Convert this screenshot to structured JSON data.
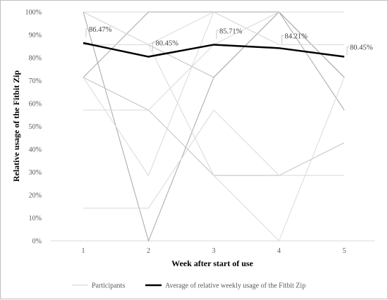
{
  "chart_data": {
    "type": "line",
    "title": "",
    "xlabel": "Week after start of use",
    "ylabel": "Relative usage of the Fitbit Zip",
    "x": [
      1,
      2,
      3,
      4,
      5
    ],
    "x_tick_labels": [
      "1",
      "2",
      "3",
      "4",
      "5"
    ],
    "ylim": [
      0,
      100
    ],
    "y_tick_labels": [
      "0%",
      "10%",
      "20%",
      "30%",
      "40%",
      "50%",
      "60%",
      "70%",
      "80%",
      "90%",
      "100%"
    ],
    "grid": false,
    "legend_position": "bottom",
    "participant_series": [
      {
        "values": [
          100,
          100,
          100,
          100,
          100
        ],
        "color": "#d9d9d9"
      },
      {
        "values": [
          100,
          85.71,
          71.43,
          100,
          71.43
        ],
        "color": "#bfbfbf"
      },
      {
        "values": [
          100,
          0,
          71.43,
          100,
          71.43
        ],
        "color": "#a6a6a6"
      },
      {
        "values": [
          71.43,
          100,
          100,
          100,
          57.14
        ],
        "color": "#a6a6a6"
      },
      {
        "values": [
          71.43,
          57.14,
          28.57,
          28.57,
          42.86
        ],
        "color": "#bfbfbf"
      },
      {
        "values": [
          71.43,
          28.57,
          100,
          85.71,
          85.71
        ],
        "color": "#d9d9d9"
      },
      {
        "values": [
          57.14,
          57.14,
          85.71,
          100,
          100
        ],
        "color": "#d9d9d9"
      },
      {
        "values": [
          14.29,
          14.29,
          57.14,
          28.57,
          28.57
        ],
        "color": "#d9d9d9"
      },
      {
        "values": [
          100,
          85.71,
          28.57,
          0,
          71.43
        ],
        "color": "#d9d9d9"
      },
      {
        "values": [
          85.71,
          85.71,
          100,
          85.71,
          85.71
        ],
        "color": "#d9d9d9"
      }
    ],
    "average_series": {
      "name": "Average of relative weekly usage of the Fitbit Zip",
      "values": [
        86.47,
        80.45,
        85.71,
        84.21,
        80.45
      ],
      "labels": [
        "86.47%",
        "80.45%",
        "85.71%",
        "84.21%",
        "80.45%"
      ],
      "color": "#000000"
    },
    "legend": [
      {
        "label": "Participants",
        "color": "#d9d9d9"
      },
      {
        "label": "Average of relative weekly usage of the Fitbit Zip",
        "color": "#000000"
      }
    ]
  }
}
